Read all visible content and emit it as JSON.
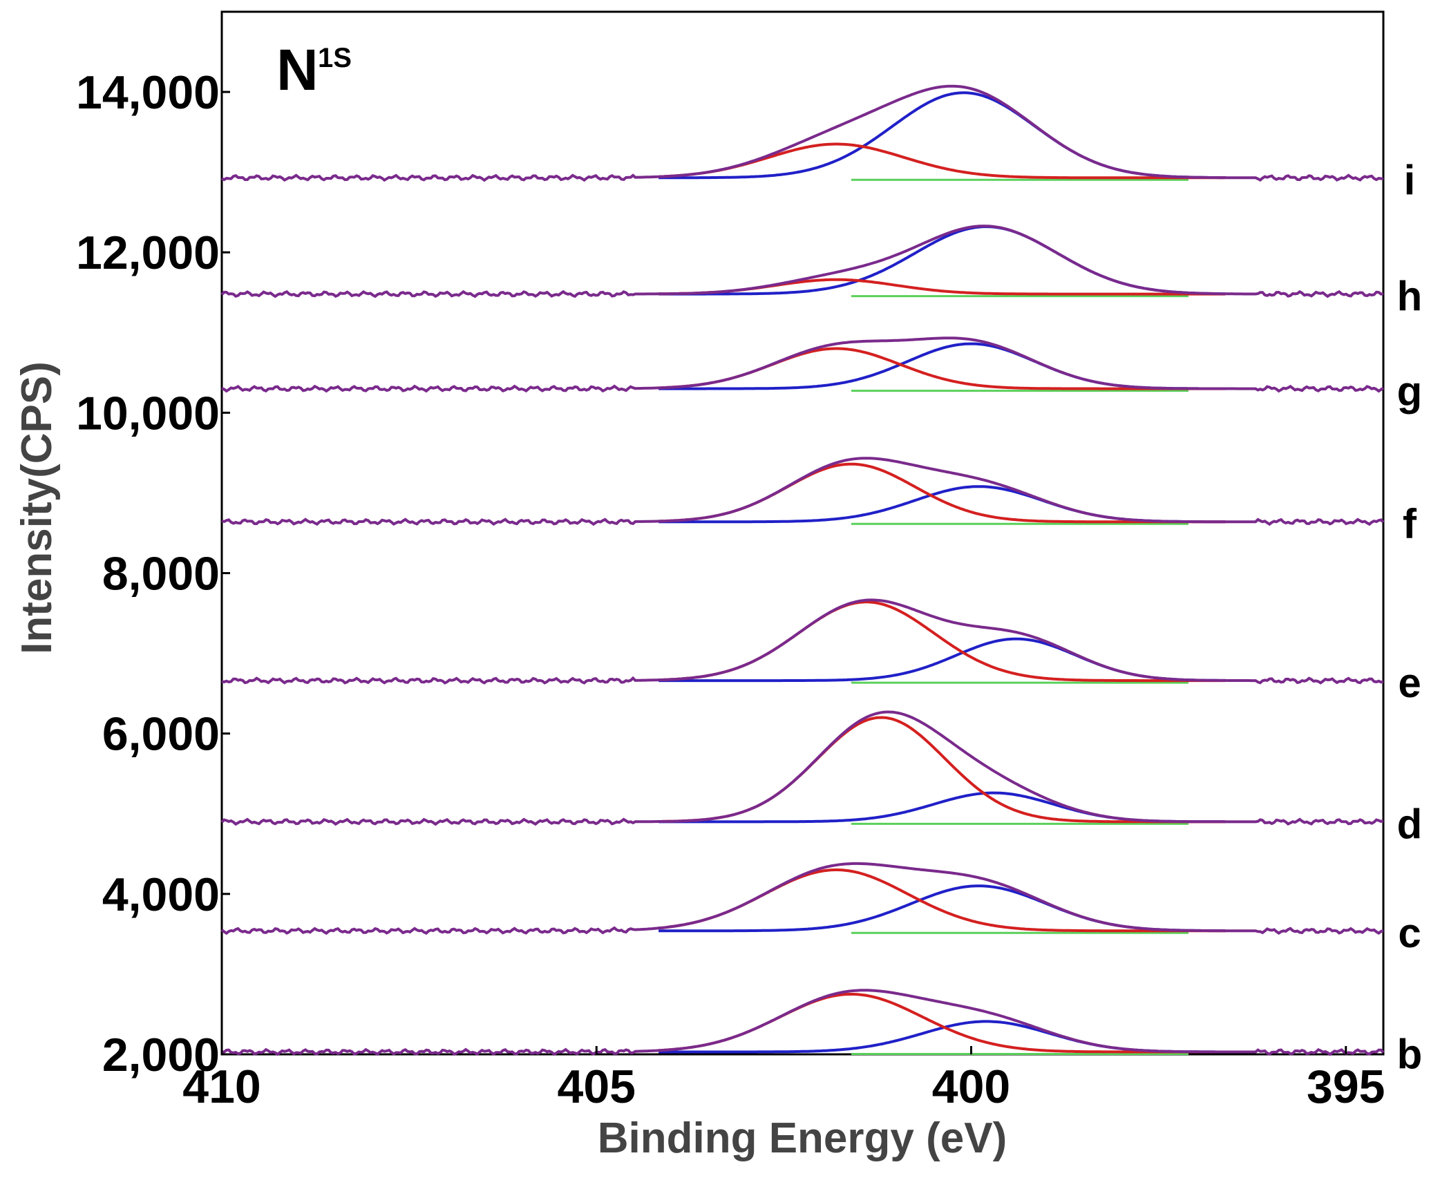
{
  "chart_data": {
    "type": "line",
    "title": "N",
    "title_superscript": "1S",
    "xlabel": "Binding Energy (eV)",
    "ylabel": "Intensity(CPS)",
    "xlim": [
      410,
      394.5
    ],
    "ylim": [
      2000,
      15000
    ],
    "x_ticks": [
      410,
      405,
      400,
      395
    ],
    "x_tick_labels": [
      "410",
      "405",
      "400",
      "395"
    ],
    "y_ticks": [
      2000,
      4000,
      6000,
      8000,
      10000,
      12000,
      14000
    ],
    "y_tick_labels": [
      "2,000",
      "4,000",
      "6,000",
      "8,000",
      "10,000",
      "12,000",
      "14,000"
    ],
    "colors": {
      "envelope": "#7a2a8c",
      "peak_high_be": "#d42020",
      "peak_low_be": "#2020c8",
      "background": "#5ad05a",
      "frame": "#000000"
    },
    "series": [
      {
        "name": "b",
        "baseline": 2030,
        "peak1": {
          "center": 401.6,
          "height": 720,
          "sigma": 0.95
        },
        "peak2": {
          "center": 399.8,
          "height": 380,
          "sigma": 0.85
        }
      },
      {
        "name": "c",
        "baseline": 3540,
        "peak1": {
          "center": 401.8,
          "height": 760,
          "sigma": 0.95
        },
        "peak2": {
          "center": 399.9,
          "height": 560,
          "sigma": 0.9
        }
      },
      {
        "name": "d",
        "baseline": 4900,
        "peak1": {
          "center": 401.2,
          "height": 1300,
          "sigma": 0.85
        },
        "peak2": {
          "center": 399.7,
          "height": 360,
          "sigma": 0.8
        }
      },
      {
        "name": "e",
        "baseline": 6660,
        "peak1": {
          "center": 401.4,
          "height": 980,
          "sigma": 0.9
        },
        "peak2": {
          "center": 399.4,
          "height": 520,
          "sigma": 0.8
        }
      },
      {
        "name": "f",
        "baseline": 8640,
        "peak1": {
          "center": 401.6,
          "height": 720,
          "sigma": 0.85
        },
        "peak2": {
          "center": 399.9,
          "height": 440,
          "sigma": 0.85
        }
      },
      {
        "name": "g",
        "baseline": 10300,
        "peak1": {
          "center": 401.8,
          "height": 500,
          "sigma": 0.85
        },
        "peak2": {
          "center": 400.0,
          "height": 560,
          "sigma": 0.85
        }
      },
      {
        "name": "h",
        "baseline": 11480,
        "peak1": {
          "center": 401.8,
          "height": 180,
          "sigma": 0.8
        },
        "peak2": {
          "center": 399.8,
          "height": 840,
          "sigma": 0.95
        }
      },
      {
        "name": "i",
        "baseline": 12930,
        "peak1": {
          "center": 401.8,
          "height": 420,
          "sigma": 0.9
        },
        "peak2": {
          "center": 400.1,
          "height": 1060,
          "sigma": 0.95
        }
      }
    ]
  }
}
